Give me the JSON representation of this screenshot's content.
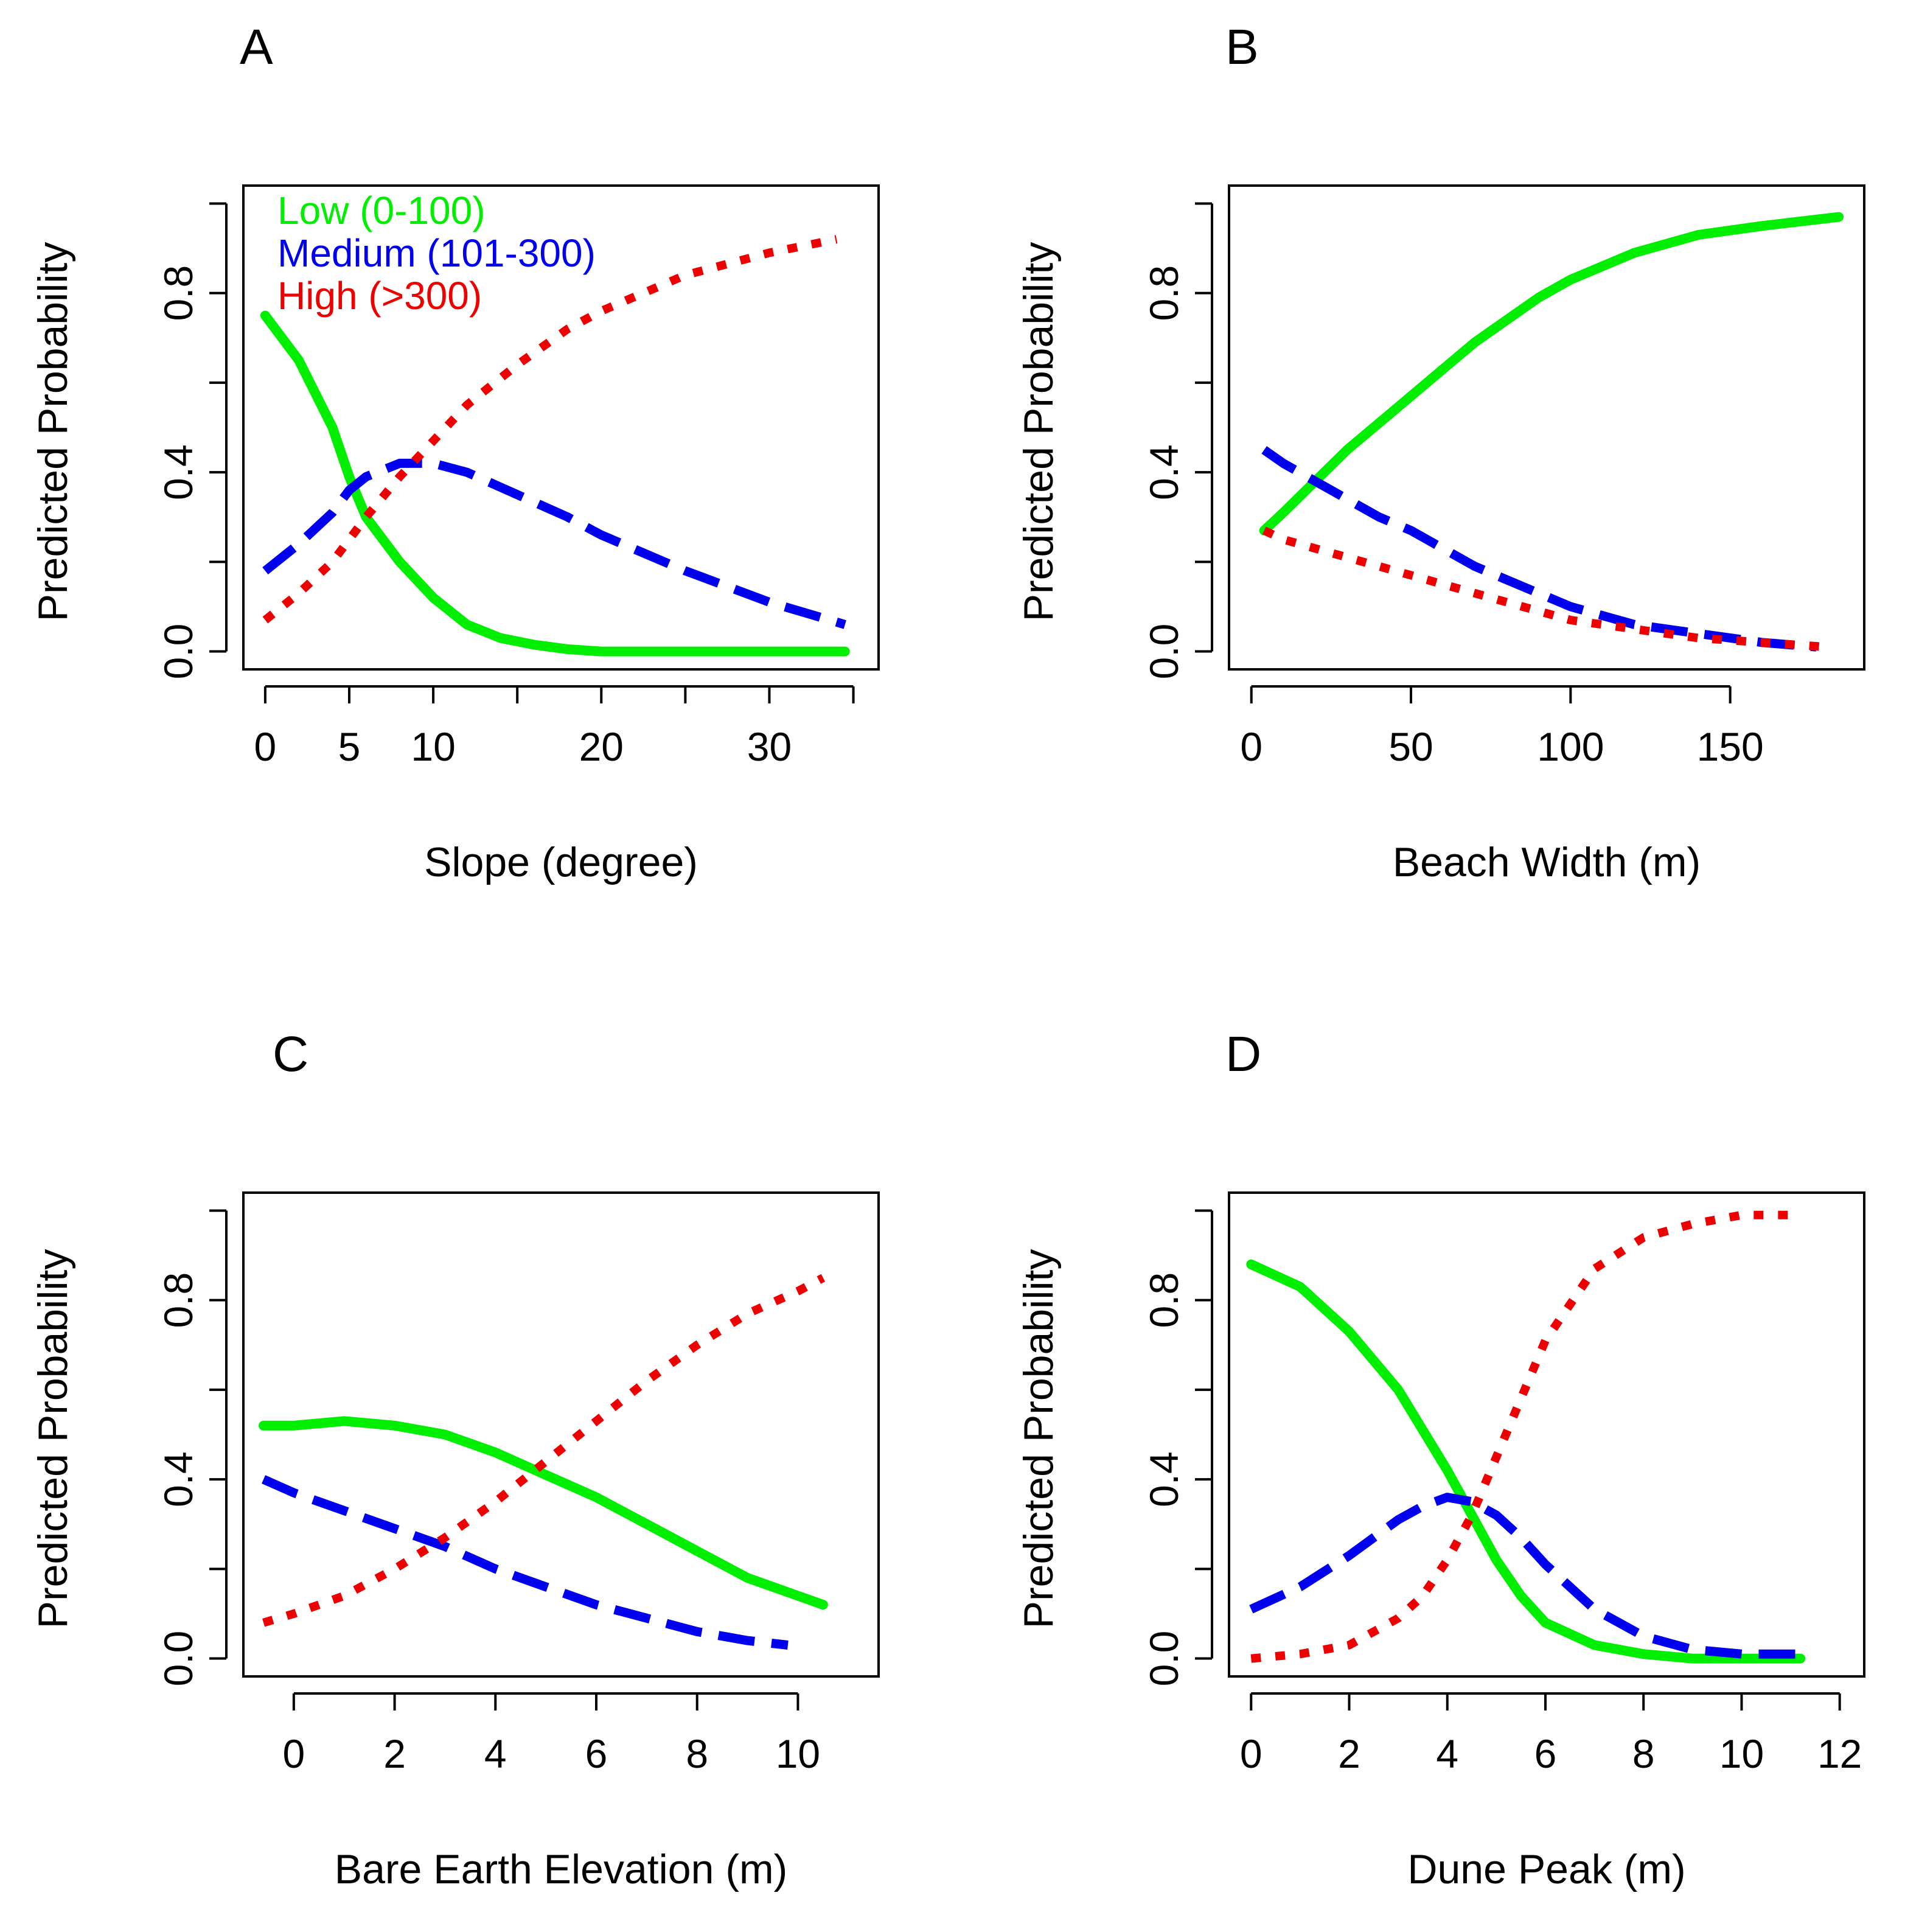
{
  "figure": {
    "colors": {
      "low": "#00ee00",
      "medium": "#0000ee",
      "high": "#ee0000",
      "axis": "#000000"
    },
    "legend": {
      "entries": [
        {
          "label": "Low (0-100)",
          "color": "#00ee00"
        },
        {
          "label": "Medium (101-300)",
          "color": "#0000ee"
        },
        {
          "label": "High (>300)",
          "color": "#ee0000"
        }
      ]
    }
  },
  "chart_data": [
    {
      "panel": "A",
      "type": "line",
      "xlabel": "Slope (degree)",
      "ylabel": "Predicted Probability",
      "xlim": [
        -1.3,
        36.5
      ],
      "ylim": [
        -0.04,
        1.04
      ],
      "xticks": [
        0,
        5,
        10,
        15,
        20,
        25,
        30,
        35
      ],
      "xtick_labels": [
        "0",
        "5",
        "10",
        "",
        "20",
        "",
        "30",
        ""
      ],
      "yticks": [
        0,
        0.2,
        0.4,
        0.6,
        0.8,
        1.0
      ],
      "ytick_labels": [
        "0.0",
        "",
        "0.4",
        "",
        "0.8",
        ""
      ],
      "legend": "top-left",
      "series": [
        {
          "name": "Low (0-100)",
          "key": "low",
          "style": "solid",
          "x": [
            0,
            2,
            4,
            5,
            6,
            8,
            10,
            12,
            14,
            16,
            18,
            20,
            25,
            30,
            34.5
          ],
          "y": [
            0.75,
            0.65,
            0.5,
            0.39,
            0.3,
            0.2,
            0.12,
            0.06,
            0.03,
            0.015,
            0.005,
            0.0,
            0.0,
            0.0,
            0.0
          ]
        },
        {
          "name": "Medium (101-300)",
          "key": "medium",
          "style": "dashed",
          "x": [
            0,
            2,
            4,
            5,
            6,
            8,
            10,
            12,
            15,
            18,
            20,
            25,
            30,
            34.5
          ],
          "y": [
            0.18,
            0.24,
            0.31,
            0.36,
            0.39,
            0.42,
            0.42,
            0.4,
            0.35,
            0.3,
            0.26,
            0.18,
            0.11,
            0.06
          ]
        },
        {
          "name": "High (>300)",
          "key": "high",
          "style": "dotted",
          "x": [
            0,
            2,
            4,
            5,
            6,
            8,
            10,
            12,
            15,
            18,
            20,
            25,
            30,
            34
          ],
          "y": [
            0.07,
            0.13,
            0.2,
            0.25,
            0.3,
            0.39,
            0.47,
            0.55,
            0.64,
            0.72,
            0.76,
            0.84,
            0.89,
            0.92
          ]
        }
      ]
    },
    {
      "panel": "B",
      "type": "line",
      "xlabel": "Beach Width (m)",
      "ylabel": "Predicted Probability",
      "xlim": [
        -7,
        192
      ],
      "ylim": [
        -0.04,
        1.04
      ],
      "xticks": [
        0,
        50,
        100,
        150
      ],
      "xtick_labels": [
        "0",
        "50",
        "100",
        "150"
      ],
      "yticks": [
        0,
        0.2,
        0.4,
        0.6,
        0.8,
        1.0
      ],
      "ytick_labels": [
        "0.0",
        "",
        "0.4",
        "",
        "0.8",
        ""
      ],
      "series": [
        {
          "name": "Low (0-100)",
          "key": "low",
          "style": "solid",
          "x": [
            4,
            10,
            20,
            30,
            40,
            50,
            60,
            70,
            80,
            90,
            100,
            120,
            140,
            160,
            184
          ],
          "y": [
            0.27,
            0.31,
            0.38,
            0.45,
            0.51,
            0.57,
            0.63,
            0.69,
            0.74,
            0.79,
            0.83,
            0.89,
            0.93,
            0.95,
            0.97
          ]
        },
        {
          "name": "Medium (101-300)",
          "key": "medium",
          "style": "dashed",
          "x": [
            4,
            10,
            20,
            30,
            40,
            50,
            60,
            70,
            80,
            90,
            100,
            120,
            140,
            160,
            177
          ],
          "y": [
            0.45,
            0.42,
            0.38,
            0.34,
            0.3,
            0.27,
            0.23,
            0.19,
            0.16,
            0.13,
            0.1,
            0.06,
            0.04,
            0.02,
            0.01
          ]
        },
        {
          "name": "High (>300)",
          "key": "high",
          "style": "dotted",
          "x": [
            4,
            10,
            20,
            30,
            40,
            50,
            60,
            70,
            80,
            90,
            100,
            120,
            140,
            160,
            180
          ],
          "y": [
            0.27,
            0.25,
            0.23,
            0.21,
            0.19,
            0.17,
            0.15,
            0.13,
            0.11,
            0.09,
            0.07,
            0.05,
            0.03,
            0.02,
            0.01
          ]
        }
      ]
    },
    {
      "panel": "C",
      "type": "line",
      "xlabel": "Bare Earth Elevation (m)",
      "ylabel": "Predicted Probability",
      "xlim": [
        -1.0,
        11.6
      ],
      "ylim": [
        -0.04,
        1.04
      ],
      "xticks": [
        0,
        2,
        4,
        6,
        8,
        10
      ],
      "xtick_labels": [
        "0",
        "2",
        "4",
        "6",
        "8",
        "10"
      ],
      "yticks": [
        0,
        0.2,
        0.4,
        0.6,
        0.8,
        1.0
      ],
      "ytick_labels": [
        "0.0",
        "",
        "0.4",
        "",
        "0.8",
        ""
      ],
      "series": [
        {
          "name": "Low (0-100)",
          "key": "low",
          "style": "solid",
          "x": [
            -0.6,
            0,
            1,
            2,
            3,
            4,
            5,
            6,
            7,
            8,
            9,
            10,
            10.5
          ],
          "y": [
            0.52,
            0.52,
            0.53,
            0.52,
            0.5,
            0.46,
            0.41,
            0.36,
            0.3,
            0.24,
            0.18,
            0.14,
            0.12
          ]
        },
        {
          "name": "Medium (101-300)",
          "key": "medium",
          "style": "dashed",
          "x": [
            -0.6,
            0,
            1,
            2,
            3,
            4,
            5,
            6,
            7,
            8,
            9,
            9.8
          ],
          "y": [
            0.4,
            0.37,
            0.33,
            0.29,
            0.25,
            0.2,
            0.16,
            0.12,
            0.09,
            0.06,
            0.04,
            0.03
          ]
        },
        {
          "name": "High (>300)",
          "key": "high",
          "style": "dotted",
          "x": [
            -0.6,
            0,
            1,
            2,
            3,
            4,
            5,
            6,
            7,
            8,
            9,
            10,
            10.5
          ],
          "y": [
            0.08,
            0.1,
            0.14,
            0.2,
            0.27,
            0.35,
            0.44,
            0.53,
            0.62,
            0.7,
            0.77,
            0.82,
            0.85
          ]
        }
      ]
    },
    {
      "panel": "D",
      "type": "line",
      "xlabel": "Dune Peak (m)",
      "ylabel": "Predicted Probability",
      "xlim": [
        -0.45,
        12.5
      ],
      "ylim": [
        -0.04,
        1.04
      ],
      "xticks": [
        0,
        2,
        4,
        6,
        8,
        10,
        12
      ],
      "xtick_labels": [
        "0",
        "2",
        "4",
        "6",
        "8",
        "10",
        "12"
      ],
      "yticks": [
        0,
        0.2,
        0.4,
        0.6,
        0.8,
        1.0
      ],
      "ytick_labels": [
        "0.0",
        "",
        "0.4",
        "",
        "0.8",
        ""
      ],
      "series": [
        {
          "name": "Low (0-100)",
          "key": "low",
          "style": "solid",
          "x": [
            0,
            1,
            2,
            3,
            3.5,
            4,
            4.5,
            5,
            5.5,
            6,
            7,
            8,
            9,
            10,
            11.2
          ],
          "y": [
            0.88,
            0.83,
            0.73,
            0.6,
            0.51,
            0.42,
            0.32,
            0.22,
            0.14,
            0.08,
            0.03,
            0.01,
            0.0,
            0.0,
            0.0
          ]
        },
        {
          "name": "Medium (101-300)",
          "key": "medium",
          "style": "dashed",
          "x": [
            0,
            1,
            2,
            3,
            3.5,
            4,
            4.5,
            5,
            5.5,
            6,
            7,
            8,
            9,
            10,
            11.2
          ],
          "y": [
            0.11,
            0.16,
            0.23,
            0.31,
            0.34,
            0.36,
            0.35,
            0.32,
            0.27,
            0.21,
            0.11,
            0.05,
            0.02,
            0.01,
            0.01
          ]
        },
        {
          "name": "High (>300)",
          "key": "high",
          "style": "dotted",
          "x": [
            0,
            1,
            2,
            3,
            3.5,
            4,
            4.5,
            5,
            5.5,
            6,
            7,
            8,
            9,
            10,
            11.2
          ],
          "y": [
            0.0,
            0.01,
            0.03,
            0.09,
            0.14,
            0.22,
            0.32,
            0.45,
            0.58,
            0.71,
            0.87,
            0.94,
            0.97,
            0.99,
            0.99
          ]
        }
      ]
    }
  ]
}
